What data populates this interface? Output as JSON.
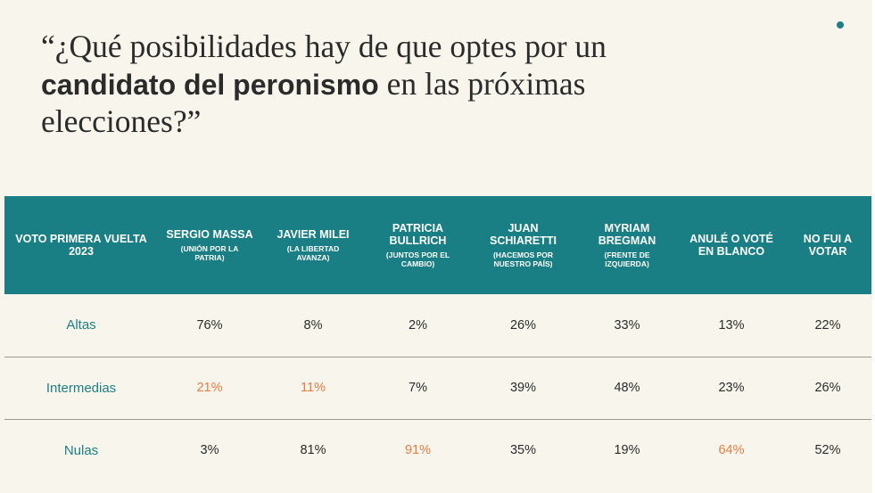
{
  "title": {
    "pre": "“¿Qué posibilidades hay de que optes por un ",
    "highlight": "candidato del peronismo",
    "post": " en las próximas elecciones?”"
  },
  "colors": {
    "accent": "#1a7f84",
    "highlight": "#ea7b45",
    "background": "#f8f6ec"
  },
  "chart_data": {
    "type": "table",
    "title": "“¿Qué posibilidades hay de que optes por un candidato del peronismo en las próximas elecciones?”",
    "corner_header": "VOTO PRIMERA VUELTA 2023",
    "columns": [
      {
        "label": "SERGIO MASSA",
        "sub": "(UNIÓN POR LA PATRIA)"
      },
      {
        "label": "JAVIER MILEI",
        "sub": "(LA LIBERTAD AVANZA)"
      },
      {
        "label": "PATRICIA BULLRICH",
        "sub": "(JUNTOS POR EL CAMBIO)"
      },
      {
        "label": "JUAN SCHIARETTI",
        "sub": "(HACEMOS POR NUESTRO PAÍS)"
      },
      {
        "label": "MYRIAM BREGMAN",
        "sub": "(FRENTE DE IZQUIERDA)"
      },
      {
        "label": "ANULÉ O VOTÉ EN BLANCO",
        "sub": ""
      },
      {
        "label": "NO FUI A VOTAR",
        "sub": ""
      }
    ],
    "rows": [
      {
        "label": "Altas",
        "values": [
          "76%",
          "8%",
          "2%",
          "26%",
          "33%",
          "13%",
          "22%"
        ],
        "highlight": [
          false,
          false,
          false,
          false,
          false,
          false,
          false
        ]
      },
      {
        "label": "Intermedias",
        "values": [
          "21%",
          "11%",
          "7%",
          "39%",
          "48%",
          "23%",
          "26%"
        ],
        "highlight": [
          true,
          true,
          false,
          false,
          false,
          false,
          false
        ]
      },
      {
        "label": "Nulas",
        "values": [
          "3%",
          "81%",
          "91%",
          "35%",
          "19%",
          "64%",
          "52%"
        ],
        "highlight": [
          false,
          false,
          true,
          false,
          false,
          true,
          false
        ]
      }
    ]
  }
}
